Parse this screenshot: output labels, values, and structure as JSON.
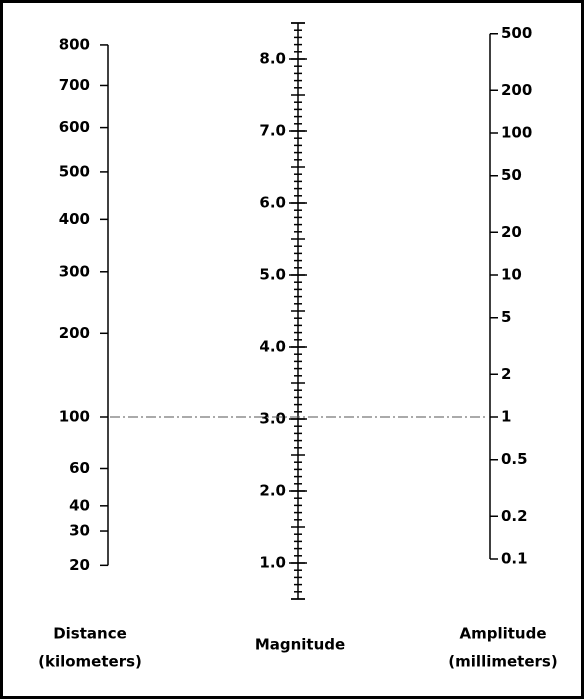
{
  "chart_data": {
    "type": "nomogram",
    "axes": [
      {
        "name": "Distance",
        "unit": "(kilometers)",
        "ylim": [
          20,
          800
        ],
        "yticks": [
          800,
          700,
          600,
          500,
          400,
          300,
          200,
          100,
          60,
          40,
          30,
          20
        ]
      },
      {
        "name": "Magnitude",
        "ylim": [
          0.5,
          8.5
        ],
        "yticks": [
          {
            "value": 8,
            "label": "8.0"
          },
          {
            "value": 7,
            "label": "7.0"
          },
          {
            "value": 6,
            "label": "6.0"
          },
          {
            "value": 5,
            "label": "5.0"
          },
          {
            "value": 4,
            "label": "4.0"
          },
          {
            "value": 3,
            "label": "3.0"
          },
          {
            "value": 2,
            "label": "2.0"
          },
          {
            "value": 1,
            "label": "1.0"
          }
        ]
      },
      {
        "name": "Amplitude",
        "unit": "(millimeters)",
        "ylim": [
          0.1,
          500
        ],
        "yticks": [
          500,
          200,
          100,
          50,
          20,
          10,
          5,
          2,
          1,
          0.5,
          0.2,
          0.1
        ]
      }
    ],
    "reading_line": {
      "distance": 100,
      "magnitude": 3,
      "amplitude": 1
    }
  }
}
